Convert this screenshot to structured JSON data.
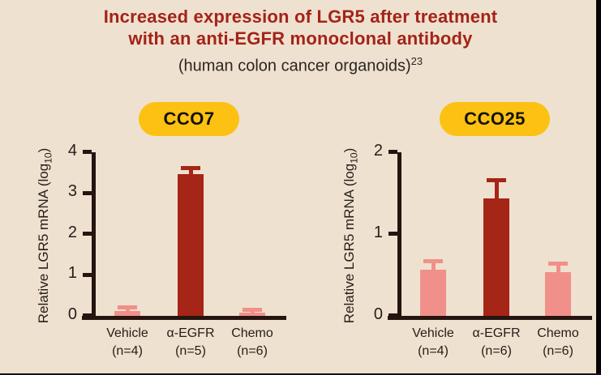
{
  "page": {
    "title_line1": "Increased expression of LGR5 after treatment",
    "title_line2": "with an anti-EGFR monoclonal antibody",
    "subtitle": "(human colon cancer organoids)",
    "subtitle_superscript": "23"
  },
  "colors": {
    "background": "#efe1cf",
    "title_red": "#a32318",
    "bar_red": "#a52517",
    "bar_pink": "#f1908a",
    "pill_yellow": "#fcc112",
    "axis_dark": "#261410",
    "text_dark": "#2b2522",
    "edge_black": "#060606",
    "bottom_line": "#12121c"
  },
  "chart_data": [
    {
      "type": "bar",
      "panel_label": "CCO7",
      "categories": [
        "Vehicle",
        "α-EGFR",
        "Chemo"
      ],
      "n_labels": [
        "(n=4)",
        "(n=5)",
        "(n=6)"
      ],
      "values": [
        0.12,
        3.45,
        0.08
      ],
      "errors_plus": [
        0.13,
        0.2,
        0.12
      ],
      "bar_colors": [
        "#f1908a",
        "#a52517",
        "#f1908a"
      ],
      "ylabel_parts": {
        "prefix": "Relative LGR5 mRNA (log",
        "sub": "10",
        "suffix": ")"
      },
      "ylim": [
        0,
        4
      ],
      "yticks": [
        0,
        1,
        2,
        3,
        4
      ],
      "grid": false,
      "legend": null
    },
    {
      "type": "bar",
      "panel_label": "CCO25",
      "categories": [
        "Vehicle",
        "α-EGFR",
        "Chemo"
      ],
      "n_labels": [
        "(n=4)",
        "(n=6)",
        "(n=6)"
      ],
      "values": [
        0.56,
        1.43,
        0.53
      ],
      "errors_plus": [
        0.13,
        0.25,
        0.13
      ],
      "bar_colors": [
        "#f1908a",
        "#a52517",
        "#f1908a"
      ],
      "ylabel_parts": {
        "prefix": "Relative LGR5 mRNA (log",
        "sub": "10",
        "suffix": ")"
      },
      "ylim": [
        0,
        2
      ],
      "yticks": [
        0,
        1,
        2
      ],
      "grid": false,
      "legend": null
    }
  ]
}
